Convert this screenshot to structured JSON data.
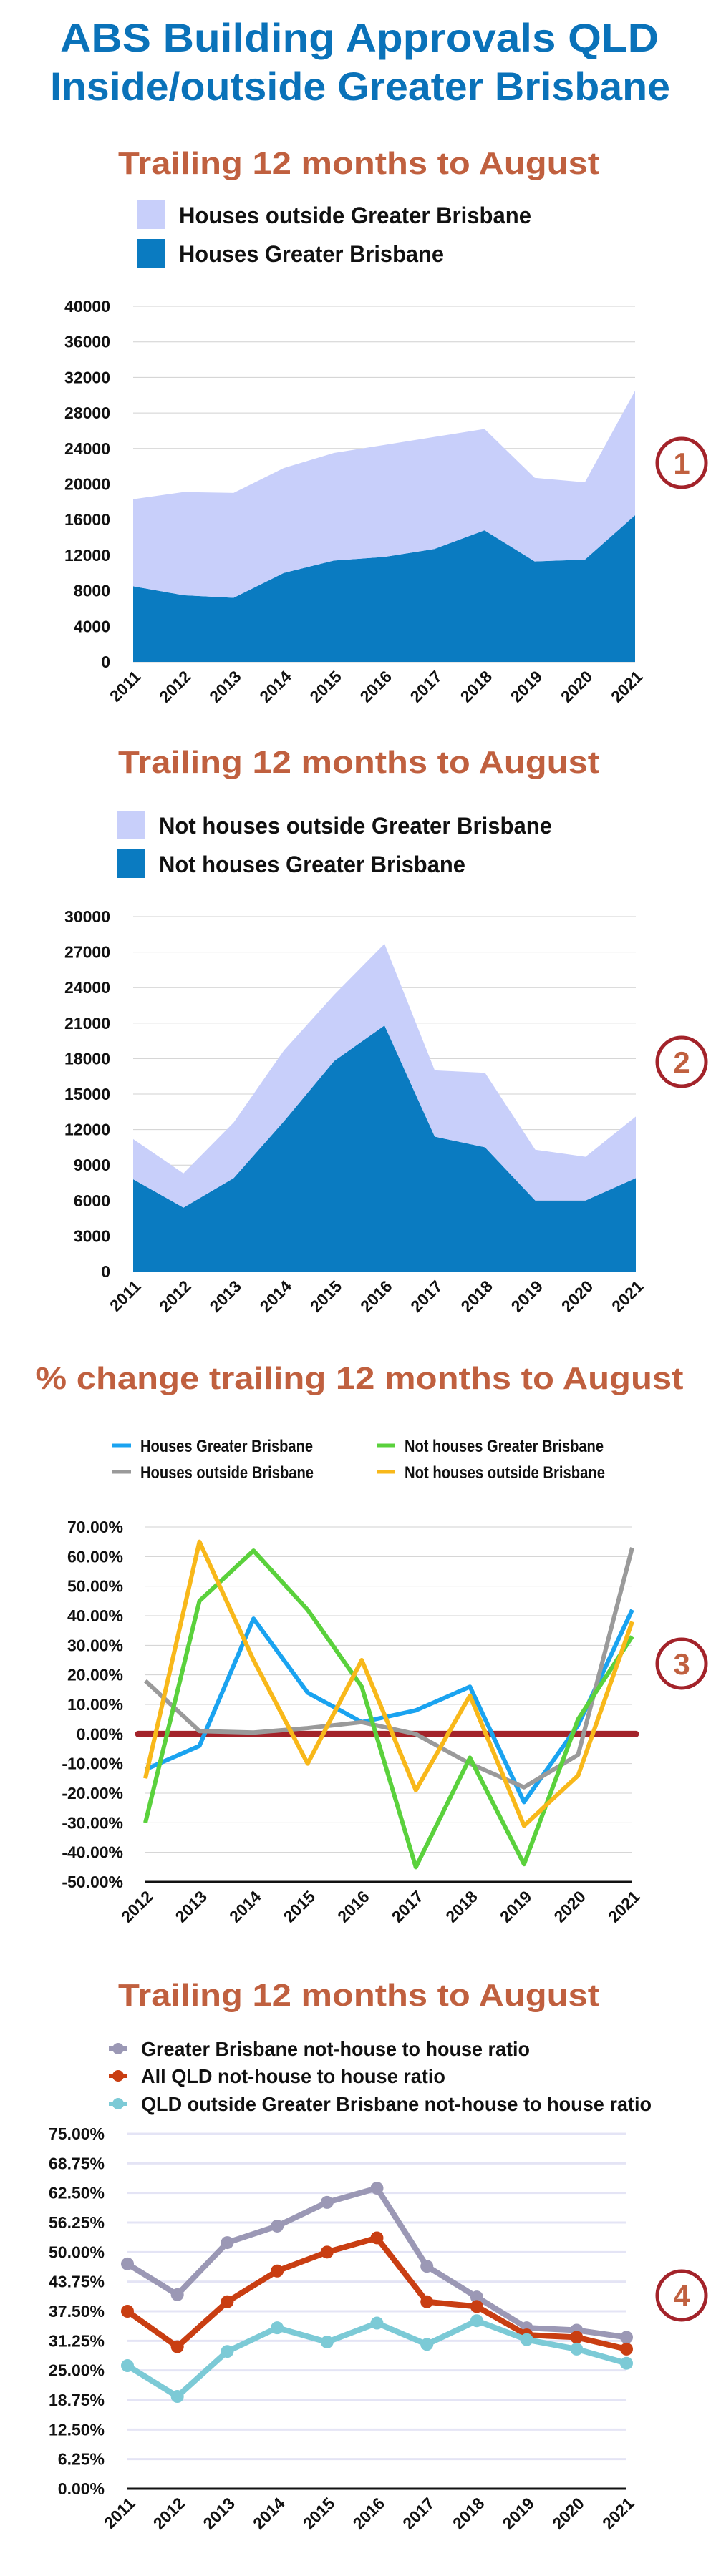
{
  "title": {
    "line1": "ABS Building Approvals QLD",
    "line2": "Inside/outside Greater Brisbane"
  },
  "colors": {
    "title": "#0a72b9",
    "subtitle": "#c0603f",
    "dark_blue": "#0a7bc1",
    "light_blue": "#c8cffa",
    "badge_ring": "#a3232a"
  },
  "chart_data": [
    {
      "id": "chart1",
      "type": "area",
      "stacked": true,
      "title": "Trailing 12 months to August",
      "badge": "1",
      "categories": [
        "2011",
        "2012",
        "2013",
        "2014",
        "2015",
        "2016",
        "2017",
        "2018",
        "2019",
        "2020",
        "2021"
      ],
      "series": [
        {
          "name": "Houses Greater Brisbane",
          "color": "#0a7bc1",
          "values": [
            8500,
            7500,
            7200,
            10000,
            11400,
            11800,
            12700,
            14800,
            11300,
            11500,
            16500
          ]
        },
        {
          "name": "Houses outside Greater Brisbane",
          "color": "#c8cffa",
          "values": [
            9800,
            11600,
            11800,
            11800,
            12100,
            12600,
            12600,
            11400,
            9400,
            8700,
            14000
          ]
        }
      ],
      "legend": [
        "Houses outside Greater Brisbane",
        "Houses Greater Brisbane"
      ],
      "yticks": [
        "0",
        "4000",
        "8000",
        "12000",
        "16000",
        "20000",
        "24000",
        "28000",
        "32000",
        "36000",
        "40000"
      ],
      "ylim": [
        0,
        40000
      ],
      "grid": true
    },
    {
      "id": "chart2",
      "type": "area",
      "stacked": true,
      "title": "Trailing 12 months to August",
      "badge": "2",
      "categories": [
        "2011",
        "2012",
        "2013",
        "2014",
        "2015",
        "2016",
        "2017",
        "2018",
        "2019",
        "2020",
        "2021"
      ],
      "series": [
        {
          "name": "Not houses Greater Brisbane",
          "color": "#0a7bc1",
          "values": [
            7800,
            5400,
            7900,
            12700,
            17800,
            20800,
            11400,
            10500,
            6000,
            6000,
            7900
          ]
        },
        {
          "name": "Not houses outside Greater Brisbane",
          "color": "#c8cffa",
          "values": [
            3400,
            2900,
            4700,
            6000,
            5600,
            6900,
            5600,
            6300,
            4300,
            3700,
            5200
          ]
        }
      ],
      "legend": [
        "Not houses outside Greater Brisbane",
        "Not houses Greater Brisbane"
      ],
      "yticks": [
        "0",
        "3000",
        "6000",
        "9000",
        "12000",
        "15000",
        "18000",
        "21000",
        "24000",
        "27000",
        "30000"
      ],
      "ylim": [
        0,
        30000
      ],
      "grid": true
    },
    {
      "id": "chart3",
      "type": "line",
      "title": "% change trailing 12 months to August",
      "badge": "3",
      "categories": [
        "2012",
        "2013",
        "2014",
        "2015",
        "2016",
        "2017",
        "2018",
        "2019",
        "2020",
        "2021"
      ],
      "series": [
        {
          "name": "Houses Greater Brisbane",
          "color": "#1aa3f0",
          "values": [
            -12,
            -4,
            39,
            14,
            4,
            8,
            16,
            -23,
            3,
            42
          ]
        },
        {
          "name": "Houses outside Brisbane",
          "color": "#9a9a9a",
          "values": [
            18,
            1,
            0.5,
            2,
            4,
            0,
            -10,
            -18,
            -7,
            63
          ]
        },
        {
          "name": "Not houses Greater Brisbane",
          "color": "#5ad13c",
          "values": [
            -30,
            45,
            62,
            42,
            16,
            -45,
            -8,
            -44,
            5,
            33
          ]
        },
        {
          "name": "Not houses outside Brisbane",
          "color": "#f8b81a",
          "values": [
            -15,
            65,
            25,
            -10,
            25,
            -19,
            13,
            -31,
            -14,
            38
          ]
        }
      ],
      "yticks": [
        "-50.00%",
        "-40.00%",
        "-30.00%",
        "-20.00%",
        "-10.00%",
        "0.00%",
        "10.00%",
        "20.00%",
        "30.00%",
        "40.00%",
        "50.00%",
        "60.00%",
        "70.00%"
      ],
      "ylim": [
        -50,
        70
      ],
      "reference_line": {
        "value": 0,
        "color": "#a3232a"
      },
      "grid": true
    },
    {
      "id": "chart4",
      "type": "line",
      "markers": true,
      "title": "Trailing 12 months to August",
      "badge": "4",
      "categories": [
        "2011",
        "2012",
        "2013",
        "2014",
        "2015",
        "2016",
        "2017",
        "2018",
        "2019",
        "2020",
        "2021"
      ],
      "series": [
        {
          "name": "Greater Brisbane not-house to house ratio",
          "color": "#9b98b5",
          "values": [
            47.5,
            41,
            52,
            55.5,
            60.5,
            63.5,
            47,
            40.5,
            34,
            33.5,
            32
          ]
        },
        {
          "name": "All QLD not-house to house ratio",
          "color": "#c93e12",
          "values": [
            37.5,
            30,
            39.5,
            46,
            50,
            53,
            39.5,
            38.5,
            32.5,
            32,
            29.5
          ]
        },
        {
          "name": "QLD outside Greater Brisbane not-house to house ratio",
          "color": "#7ccad6",
          "values": [
            26,
            19.5,
            29,
            34,
            31,
            35,
            30.5,
            35.5,
            31.5,
            29.5,
            26.5
          ]
        }
      ],
      "yticks": [
        "0.00%",
        "6.25%",
        "12.50%",
        "18.75%",
        "25.00%",
        "31.25%",
        "37.50%",
        "43.75%",
        "50.00%",
        "56.25%",
        "62.50%",
        "68.75%",
        "75.00%"
      ],
      "ylim": [
        0,
        75
      ],
      "grid": true
    }
  ]
}
